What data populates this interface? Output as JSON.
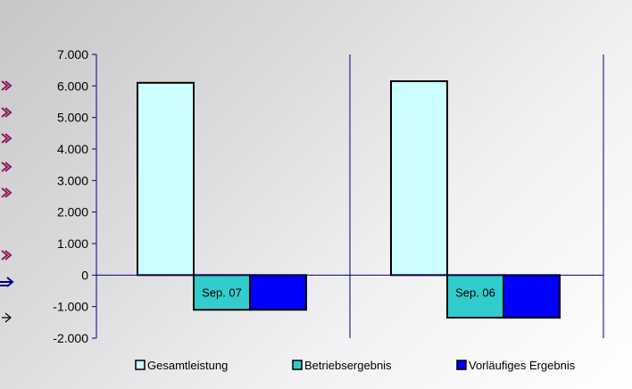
{
  "colors": {
    "gesamtleistung": "#ccffff",
    "betriebsergebnis": "#33cccc",
    "vorlaeufiges_ergebnis": "#0000ff",
    "axis": "#000080",
    "bar_stroke": "#000000",
    "decor": "#8b1a5a"
  },
  "chart_data": {
    "type": "bar",
    "categories": [
      "Sep. 07",
      "Sep. 06"
    ],
    "series": [
      {
        "name": "Gesamtleistung",
        "values": [
          6100,
          6150
        ]
      },
      {
        "name": "Betriebsergebnis",
        "values": [
          -1100,
          -1350
        ]
      },
      {
        "name": "Vorläufiges Ergebnis",
        "values": [
          -1100,
          -1350
        ]
      }
    ],
    "ylim": [
      -2000,
      7000
    ],
    "yticks": [
      7000,
      6000,
      5000,
      4000,
      3000,
      2000,
      1000,
      0,
      -1000,
      -2000
    ],
    "ytick_labels": [
      "7.000",
      "6.000",
      "5.000",
      "4.000",
      "3.000",
      "2.000",
      "1.000",
      "0",
      "-1.000",
      "-2.000"
    ],
    "legend_position": "bottom",
    "grid": false
  }
}
